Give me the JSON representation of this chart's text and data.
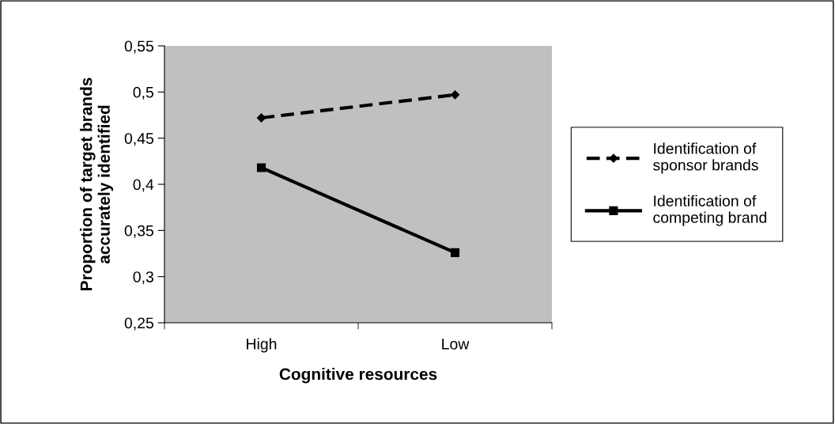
{
  "chart_data": {
    "type": "line",
    "xlabel": "Cognitive resources",
    "ylabel": "Proportion of target brands\naccurately identified",
    "categories": [
      "High",
      "Low"
    ],
    "series": [
      {
        "name": "Identification of\nsponsor brands",
        "color": "#000000",
        "values": [
          0.472,
          0.497
        ],
        "marker": "diamond",
        "line_style": "dashed"
      },
      {
        "name": "Identification of\ncompeting brand",
        "color": "#000000",
        "values": [
          0.418,
          0.326
        ],
        "marker": "square",
        "line_style": "solid"
      }
    ],
    "ylim": [
      0.25,
      0.55
    ],
    "yticks": [
      {
        "value": 0.25,
        "label": "0,25"
      },
      {
        "value": 0.3,
        "label": "0,3"
      },
      {
        "value": 0.35,
        "label": "0,35"
      },
      {
        "value": 0.4,
        "label": "0,4"
      },
      {
        "value": 0.45,
        "label": "0,45"
      },
      {
        "value": 0.5,
        "label": "0,5"
      },
      {
        "value": 0.55,
        "label": "0,55"
      }
    ],
    "grid": false,
    "legend": "right"
  }
}
